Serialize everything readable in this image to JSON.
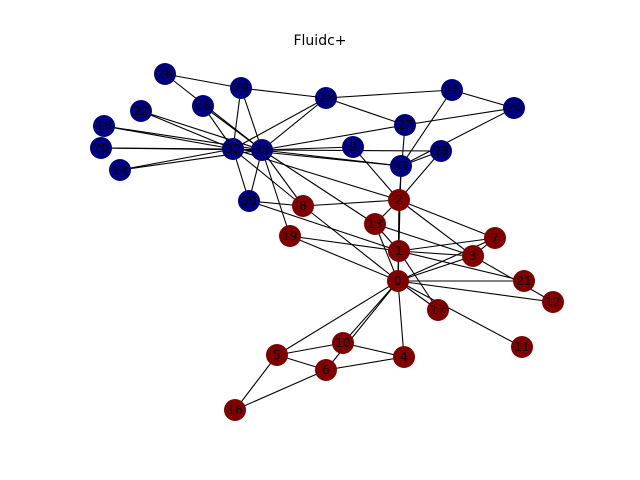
{
  "title": "Fluidc+",
  "colors": {
    "community_a": "#800000",
    "community_b": "#00007f",
    "edge": "#000000"
  },
  "nodes": [
    {
      "id": "0",
      "community": "a"
    },
    {
      "id": "1",
      "community": "a"
    },
    {
      "id": "2",
      "community": "a"
    },
    {
      "id": "3",
      "community": "a"
    },
    {
      "id": "4",
      "community": "a"
    },
    {
      "id": "5",
      "community": "a"
    },
    {
      "id": "6",
      "community": "a"
    },
    {
      "id": "7",
      "community": "a"
    },
    {
      "id": "8",
      "community": "a"
    },
    {
      "id": "9",
      "community": "b"
    },
    {
      "id": "10",
      "community": "a"
    },
    {
      "id": "11",
      "community": "a"
    },
    {
      "id": "12",
      "community": "a"
    },
    {
      "id": "13",
      "community": "a"
    },
    {
      "id": "14",
      "community": "b"
    },
    {
      "id": "15",
      "community": "b"
    },
    {
      "id": "16",
      "community": "a"
    },
    {
      "id": "17",
      "community": "a"
    },
    {
      "id": "18",
      "community": "b"
    },
    {
      "id": "19",
      "community": "a"
    },
    {
      "id": "20",
      "community": "b"
    },
    {
      "id": "21",
      "community": "a"
    },
    {
      "id": "22",
      "community": "b"
    },
    {
      "id": "23",
      "community": "b"
    },
    {
      "id": "24",
      "community": "b"
    },
    {
      "id": "25",
      "community": "b"
    },
    {
      "id": "26",
      "community": "b"
    },
    {
      "id": "27",
      "community": "b"
    },
    {
      "id": "28",
      "community": "b"
    },
    {
      "id": "29",
      "community": "b"
    },
    {
      "id": "30",
      "community": "b"
    },
    {
      "id": "31",
      "community": "b"
    },
    {
      "id": "32",
      "community": "b"
    },
    {
      "id": "33",
      "community": "b"
    }
  ],
  "edges": [
    [
      "0",
      "1"
    ],
    [
      "0",
      "2"
    ],
    [
      "0",
      "3"
    ],
    [
      "0",
      "4"
    ],
    [
      "0",
      "5"
    ],
    [
      "0",
      "6"
    ],
    [
      "0",
      "7"
    ],
    [
      "0",
      "8"
    ],
    [
      "0",
      "10"
    ],
    [
      "0",
      "11"
    ],
    [
      "0",
      "12"
    ],
    [
      "0",
      "13"
    ],
    [
      "0",
      "17"
    ],
    [
      "0",
      "19"
    ],
    [
      "0",
      "21"
    ],
    [
      "0",
      "31"
    ],
    [
      "1",
      "2"
    ],
    [
      "1",
      "3"
    ],
    [
      "1",
      "7"
    ],
    [
      "1",
      "13"
    ],
    [
      "1",
      "17"
    ],
    [
      "1",
      "19"
    ],
    [
      "1",
      "21"
    ],
    [
      "1",
      "30"
    ],
    [
      "2",
      "3"
    ],
    [
      "2",
      "7"
    ],
    [
      "2",
      "8"
    ],
    [
      "2",
      "9"
    ],
    [
      "2",
      "13"
    ],
    [
      "2",
      "27"
    ],
    [
      "2",
      "28"
    ],
    [
      "2",
      "32"
    ],
    [
      "3",
      "7"
    ],
    [
      "3",
      "12"
    ],
    [
      "3",
      "13"
    ],
    [
      "4",
      "6"
    ],
    [
      "4",
      "10"
    ],
    [
      "5",
      "6"
    ],
    [
      "5",
      "10"
    ],
    [
      "5",
      "16"
    ],
    [
      "6",
      "16"
    ],
    [
      "8",
      "30"
    ],
    [
      "8",
      "32"
    ],
    [
      "8",
      "33"
    ],
    [
      "9",
      "33"
    ],
    [
      "13",
      "33"
    ],
    [
      "14",
      "32"
    ],
    [
      "14",
      "33"
    ],
    [
      "15",
      "32"
    ],
    [
      "15",
      "33"
    ],
    [
      "18",
      "32"
    ],
    [
      "18",
      "33"
    ],
    [
      "19",
      "33"
    ],
    [
      "20",
      "32"
    ],
    [
      "20",
      "33"
    ],
    [
      "22",
      "32"
    ],
    [
      "22",
      "33"
    ],
    [
      "23",
      "25"
    ],
    [
      "23",
      "27"
    ],
    [
      "23",
      "29"
    ],
    [
      "23",
      "32"
    ],
    [
      "23",
      "33"
    ],
    [
      "24",
      "25"
    ],
    [
      "24",
      "27"
    ],
    [
      "24",
      "31"
    ],
    [
      "25",
      "31"
    ],
    [
      "26",
      "29"
    ],
    [
      "26",
      "33"
    ],
    [
      "27",
      "33"
    ],
    [
      "28",
      "31"
    ],
    [
      "28",
      "33"
    ],
    [
      "29",
      "32"
    ],
    [
      "29",
      "33"
    ],
    [
      "30",
      "32"
    ],
    [
      "30",
      "33"
    ],
    [
      "31",
      "32"
    ],
    [
      "31",
      "33"
    ],
    [
      "32",
      "33"
    ]
  ]
}
